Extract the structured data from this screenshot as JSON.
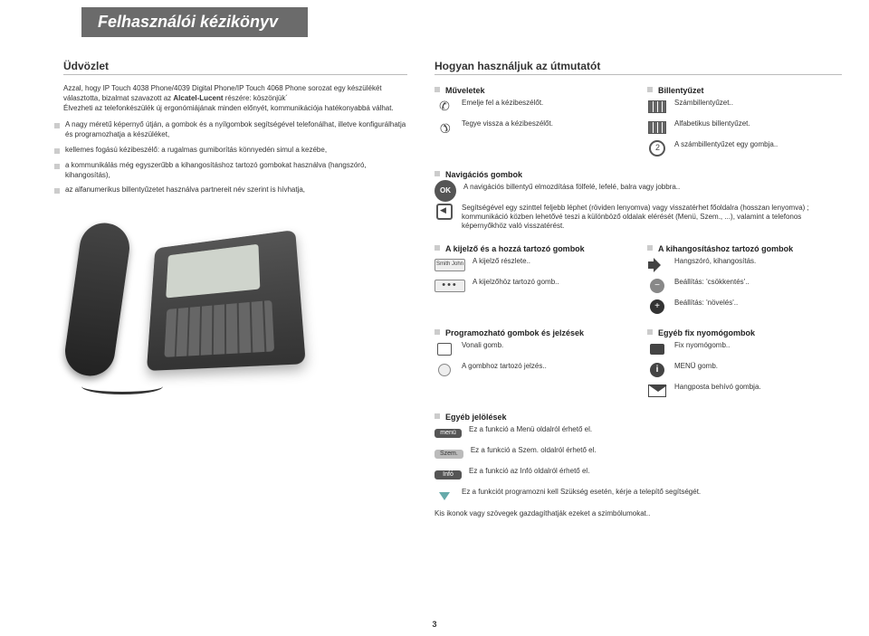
{
  "doc_title": "Felhasználói kézikönyv",
  "page_number": "3",
  "left": {
    "heading": "Üdvözlet",
    "intro_line1": "Azzal, hogy IP Touch 4038 Phone/4039 Digital Phone/IP Touch 4068 Phone sorozat egy készülékét választotta, bizalmat szavazott az ",
    "intro_bold": "Alcatel-Lucent",
    "intro_line1b": " részére: köszönjük´",
    "intro_line2": "Élvezheti az telefonkészülék új ergonómiájának minden előnyét, kommunikációja hatékonyabbá válhat.",
    "features": [
      "A nagy méretű képernyő útján, a gombok és a nyílgombok segítségével telefonálhat, illetve konfigurálhatja és programozhatja a készüléket,",
      "kellemes fogású kézibeszélő: a rugalmas gumiborítás könnyedén simul a kezébe,",
      "a kommunikálás még egyszerűbb a kihangosításhoz tartozó gombokat használva (hangszóró, kihangosítás),",
      "az alfanumerikus billentyűzetet használva partnereit név szerint is hívhatja,"
    ]
  },
  "right": {
    "heading": "Hogyan használjuk az útmutatót",
    "ops_title": "Műveletek",
    "ops": [
      "Emelje fel a kézibeszélőt.",
      "Tegye vissza a kézibeszélőt."
    ],
    "keypad_title": "Billentyűzet",
    "keypad": [
      "Számbillentyűzet..",
      "Alfabetikus billentyűzet.",
      "A számbillentyűzet egy gombja.."
    ],
    "nav_title": "Navigációs gombok",
    "nav_ok": "A navigációs billentyű elmozdítása fölfelé, lefelé, balra vagy jobbra..",
    "nav_back": "Segítségével egy szinttel feljebb léphet (röviden lenyomva) vagy visszatérhet főoldalra (hosszan lenyomva) ; kommunikáció közben lehetővé teszi a különböző oldalak elérését (Menü, Szem., ...), valamint a telefonos képernyőkhöz való visszatérést.",
    "disp_title": "A kijelző és a hozzá tartozó gombok",
    "disp_name": "Smith John",
    "disp_rows": [
      "A kijelző részlete..",
      "A kijelzőhöz tartozó gomb.."
    ],
    "loud_title": "A kihangosításhoz tartozó gombok",
    "loud_rows": [
      "Hangszóró, kihangosítás.",
      "Beállítás: 'csökkentés'..",
      "Beállítás: 'növelés'.."
    ],
    "prog_title": "Programozható gombok és jelzések",
    "prog_rows": [
      "Vonali gomb.",
      "A gombhoz tartozó jelzés.."
    ],
    "fix_title": "Egyéb fix nyomógombok",
    "fix_rows": [
      "Fix nyomógomb..",
      "MENÜ gomb.",
      "Hangposta behívó gombja."
    ],
    "other_title": "Egyéb jelölések",
    "other_labels": [
      "menü",
      "Szem.",
      "Infó"
    ],
    "other_rows": [
      "Ez a funkció a Menü oldalról érhető el.",
      "Ez a funkció a Szem. oldalról érhető el.",
      "Ez a funkció az Infó oldalról érhető el.",
      "Ez a funkciót programozni kell Szükség esetén, kérje a telepítő segítségét."
    ],
    "footnote": "Kis ikonok vagy szövegek gazdagíthatják ezeket a szimbólumokat.."
  },
  "colors": {
    "banner_bg": "#6b6b6b",
    "text": "#333333",
    "rule": "#bbbbbb"
  }
}
